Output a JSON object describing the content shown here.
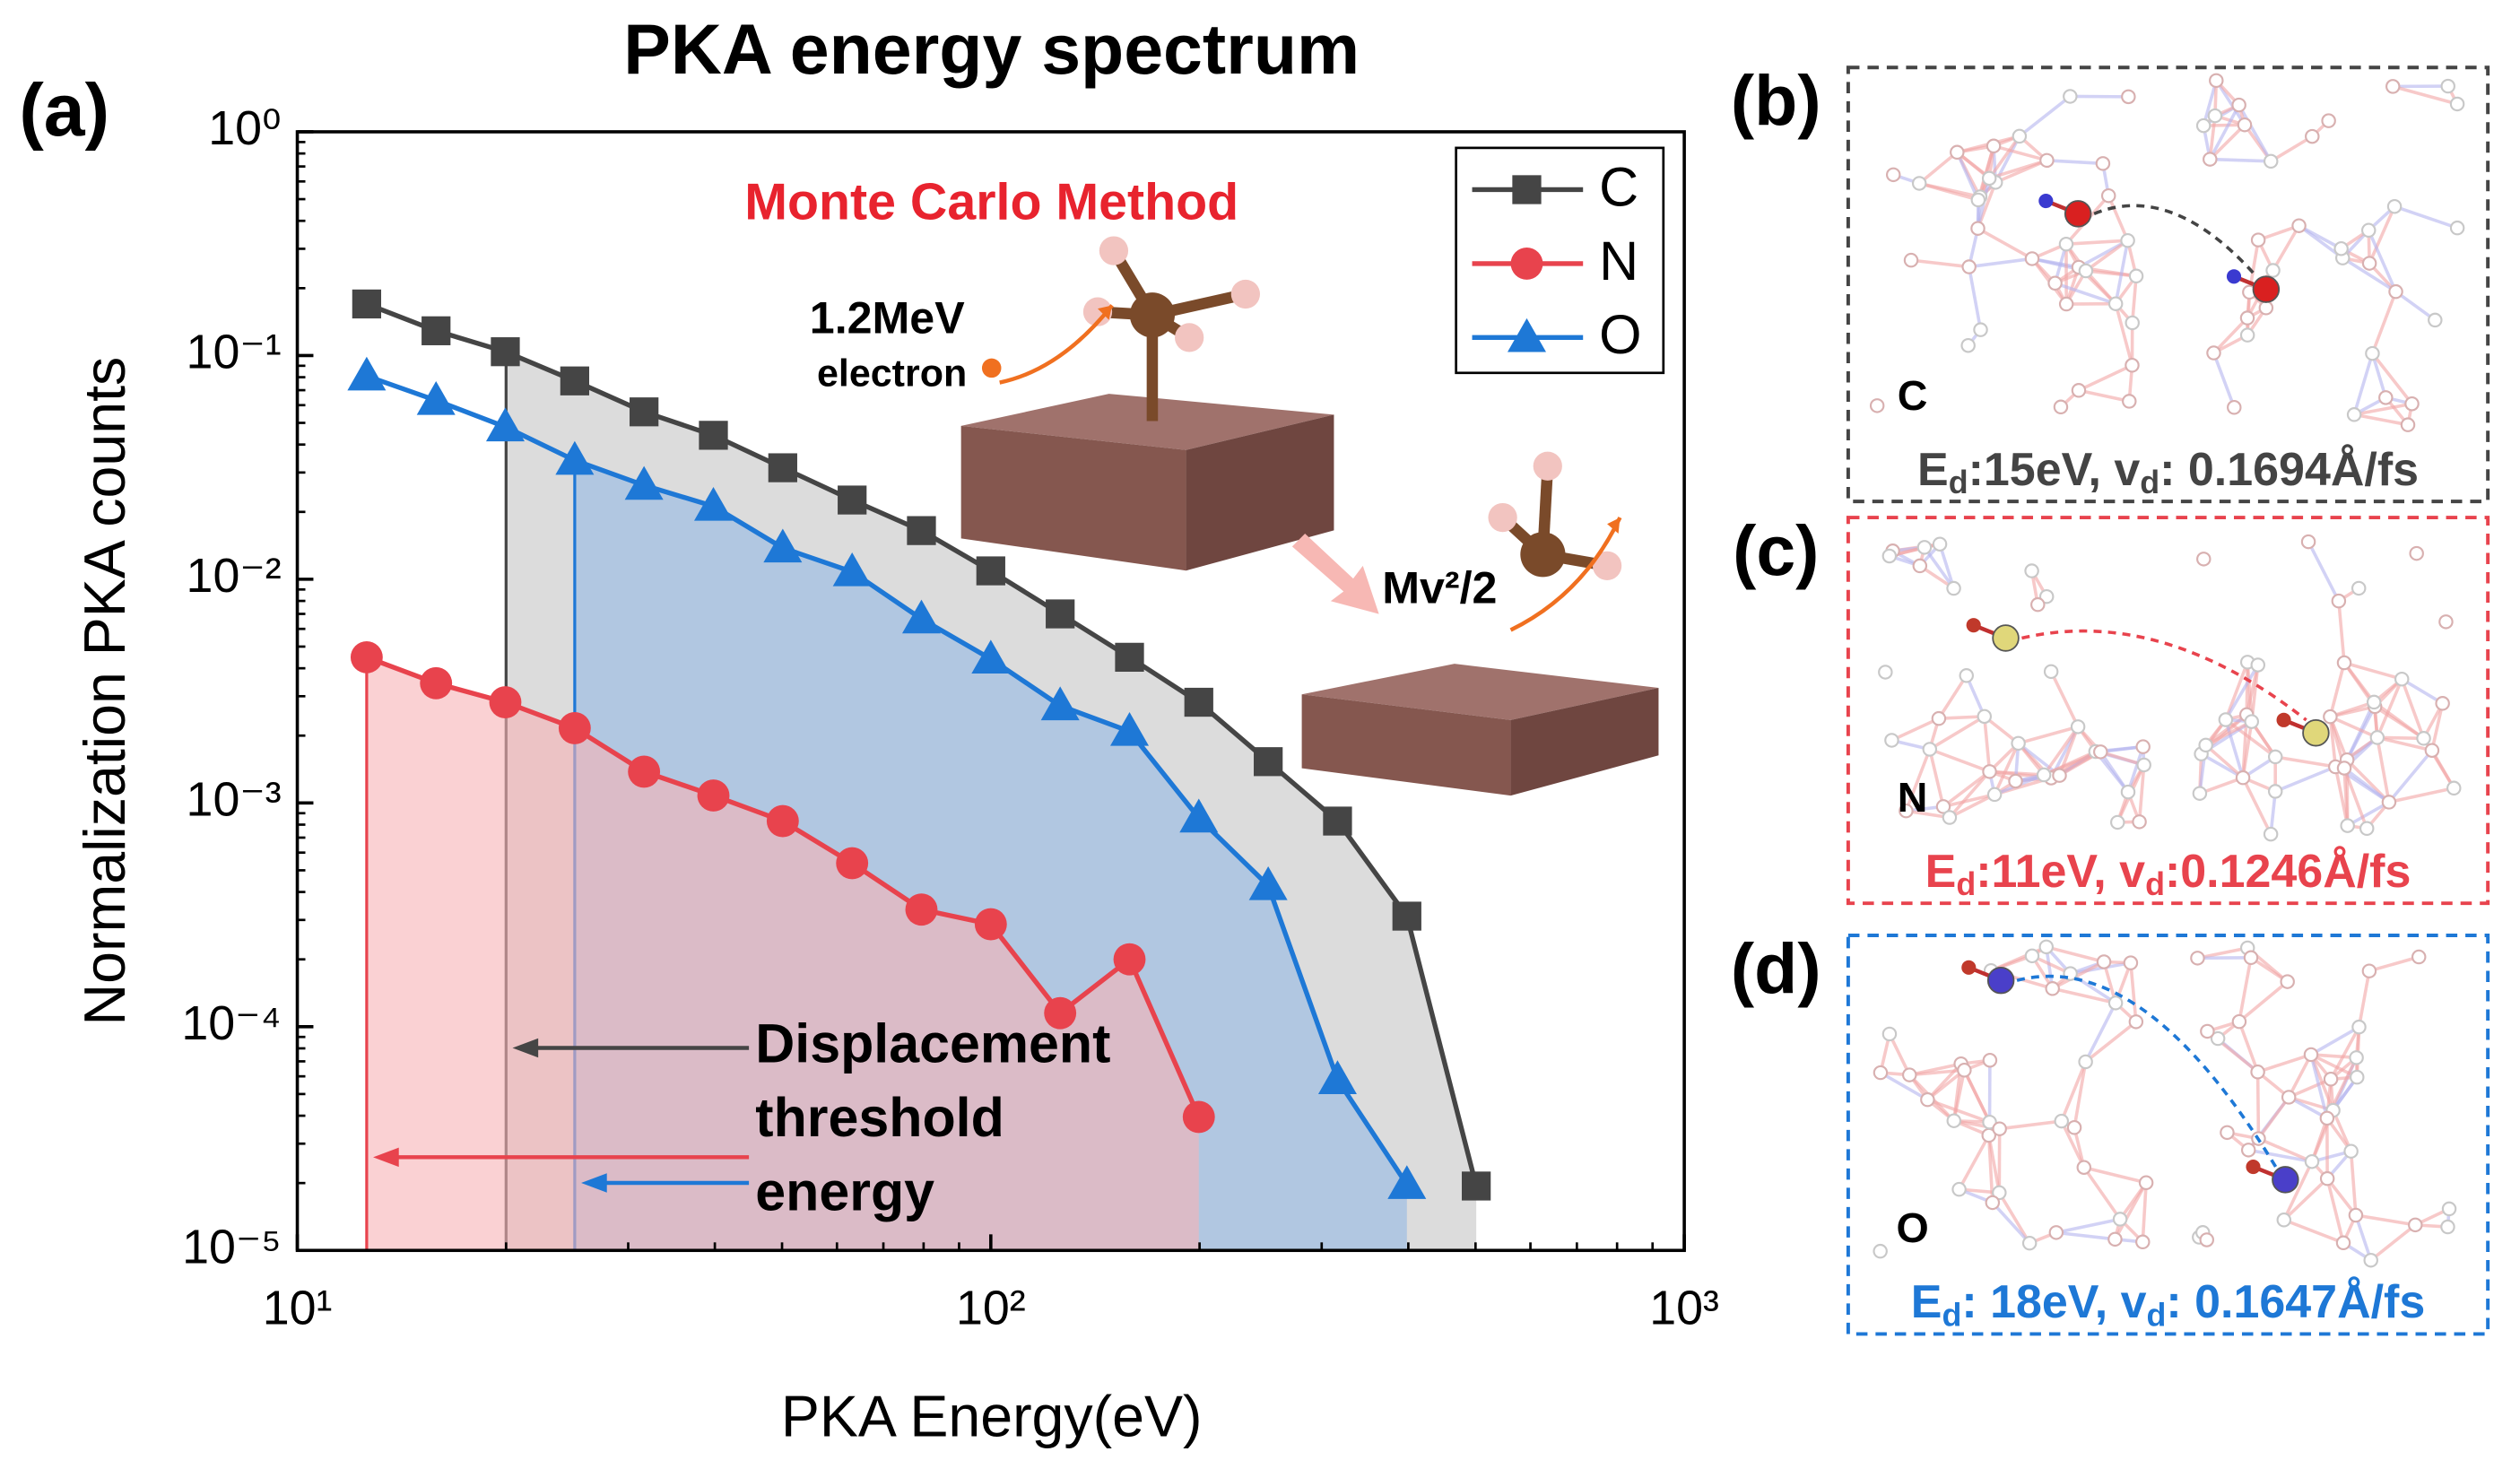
{
  "chart_label": "(a)",
  "chart_data": {
    "type": "line",
    "title": "PKA energy spectrum",
    "xlabel": "PKA Energy(eV)",
    "ylabel": "Normalization PKA counts",
    "xscale": "log",
    "yscale": "log",
    "xlim": [
      10,
      1000
    ],
    "ylim": [
      1e-05,
      1
    ],
    "xticks": [
      {
        "value": 10,
        "label": "10¹"
      },
      {
        "value": 100,
        "label": "10²"
      },
      {
        "value": 1000,
        "label": "10³"
      }
    ],
    "yticks": [
      {
        "value": 1e-05,
        "label": "10⁻⁵"
      },
      {
        "value": 0.0001,
        "label": "10⁻⁴"
      },
      {
        "value": 0.001,
        "label": "10⁻³"
      },
      {
        "value": 0.01,
        "label": "10⁻²"
      },
      {
        "value": 0.1,
        "label": "10⁻¹"
      },
      {
        "value": 1,
        "label": "10⁰"
      }
    ],
    "legend": "upper right",
    "series": [
      {
        "name": "C",
        "color": "#454545",
        "marker": "square",
        "fill": "#d6d6d6",
        "threshold": 20,
        "x": [
          12.59,
          15.85,
          19.95,
          25.12,
          31.62,
          39.81,
          50.12,
          63.1,
          79.43,
          100,
          125.9,
          158.5,
          199.5,
          251.2,
          316.2,
          398.1,
          501.2
        ],
        "values": [
          0.17,
          0.129,
          0.104,
          0.077,
          0.056,
          0.044,
          0.0315,
          0.0226,
          0.0165,
          0.0109,
          0.007,
          0.00448,
          0.00282,
          0.00153,
          0.00083,
          0.000312,
          1.94e-05
        ]
      },
      {
        "name": "N",
        "color": "#e8434d",
        "marker": "circle",
        "fill": "#f6b3b6",
        "threshold": 12.59,
        "x": [
          12.59,
          15.85,
          19.95,
          25.12,
          31.62,
          39.81,
          50.12,
          63.1,
          79.43,
          100,
          125.9,
          158.5,
          199.5
        ],
        "values": [
          0.00448,
          0.00343,
          0.00282,
          0.00216,
          0.00138,
          0.00108,
          0.00083,
          0.000538,
          0.000334,
          0.000287,
          0.000115,
          0.0002,
          3.95e-05
        ]
      },
      {
        "name": "O",
        "color": "#1e78d6",
        "marker": "triangle",
        "fill": "#a9c3e2",
        "threshold": 25.12,
        "x": [
          12.59,
          15.85,
          19.95,
          25.12,
          31.62,
          39.81,
          50.12,
          63.1,
          79.43,
          100,
          125.9,
          158.5,
          199.5,
          251.2,
          316.2,
          398.1
        ],
        "values": [
          0.081,
          0.063,
          0.048,
          0.034,
          0.0263,
          0.0212,
          0.0138,
          0.0108,
          0.00665,
          0.0044,
          0.00272,
          0.00209,
          0.000857,
          0.000427,
          5.8e-05,
          1.97e-05
        ]
      }
    ],
    "annotations": {
      "method": "Monte Carlo Method",
      "beam_energy": "1.2MeV",
      "beam_particle": "electron",
      "energy_formula": "Mv²/2",
      "threshold_note": [
        "Displacement",
        "threshold",
        "energy"
      ]
    }
  },
  "panels": [
    {
      "label": "(b)",
      "atom": "C",
      "color": "#444444",
      "caption": [
        "E",
        "d",
        ":15eV, v",
        "d",
        ": 0.1694Å/fs"
      ]
    },
    {
      "label": "(c)",
      "atom": "N",
      "color": "#e8434d",
      "caption": [
        "E",
        "d",
        ":11eV, v",
        "d",
        ":0.1246Å/fs"
      ]
    },
    {
      "label": "(d)",
      "atom": "O",
      "color": "#1e78d6",
      "caption": [
        "E",
        "d",
        ": 18eV, v",
        "d",
        ": 0.1647Å/fs"
      ]
    }
  ]
}
